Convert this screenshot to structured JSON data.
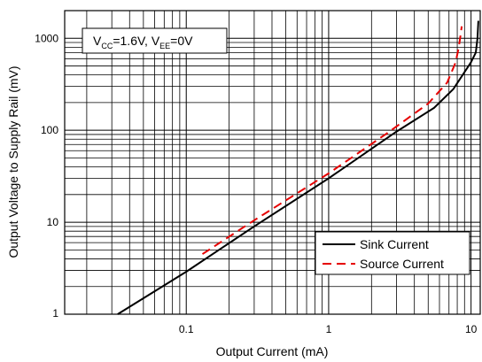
{
  "chart_data": {
    "type": "line",
    "xlabel": "Output Current (mA)",
    "ylabel": "Output Voltage to Supply Rail (mV)",
    "x_scale": "log",
    "y_scale": "log",
    "xlim": [
      0.014,
      11.6
    ],
    "ylim": [
      1,
      2000
    ],
    "x_ticks": [
      0.1,
      1,
      10
    ],
    "x_tick_labels": [
      "0.1",
      "1",
      "10"
    ],
    "y_ticks": [
      1,
      10,
      100,
      1000
    ],
    "y_tick_labels": [
      "1",
      "10",
      "100",
      "1000"
    ],
    "grid": true,
    "legend_position": "bottom-right",
    "annotation": {
      "v1": "V",
      "cc": "CC",
      "mid": "=1.6V, V",
      "ee": "EE",
      "end": "=0V"
    },
    "series": [
      {
        "name": "Sink Current",
        "color": "#000000",
        "dash": "solid",
        "x": [
          0.033,
          0.1,
          0.3,
          1,
          3,
          5.5,
          7.5,
          9,
          10,
          10.8,
          11.1,
          11.25
        ],
        "y": [
          1,
          2.9,
          9,
          30,
          97,
          175,
          280,
          430,
          550,
          700,
          1000,
          1550
        ]
      },
      {
        "name": "Source Current",
        "color": "#e60000",
        "dash": "dashed",
        "x": [
          0.13,
          0.3,
          1,
          2.5,
          5,
          6.8,
          7.8,
          8.2,
          8.45,
          8.6
        ],
        "y": [
          4.5,
          10.5,
          34,
          90,
          195,
          330,
          550,
          800,
          1100,
          1350
        ]
      }
    ]
  }
}
